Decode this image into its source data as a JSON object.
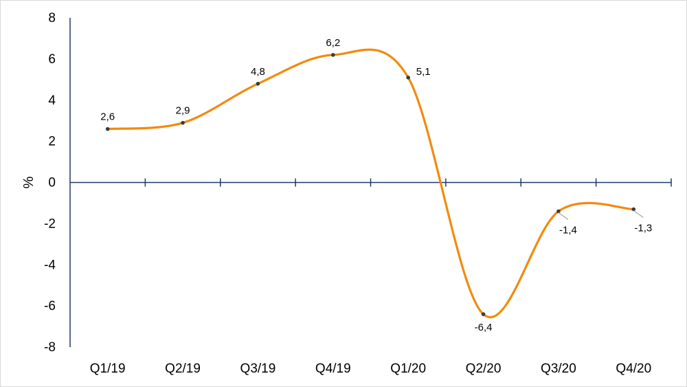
{
  "chart_data": {
    "type": "line",
    "title": "",
    "xlabel": "",
    "ylabel": "%",
    "categories": [
      "Q1/19",
      "Q2/19",
      "Q3/19",
      "Q4/19",
      "Q1/20",
      "Q2/20",
      "Q3/20",
      "Q4/20"
    ],
    "values": [
      2.6,
      2.9,
      4.8,
      6.2,
      5.1,
      -6.4,
      -1.4,
      -1.3
    ],
    "data_labels": [
      "2,6",
      "2,9",
      "4,8",
      "6,2",
      "5,1",
      "-6,4",
      "-1,4",
      "-1,3"
    ],
    "yticks": [
      8,
      6,
      4,
      2,
      0,
      -2,
      -4,
      -6,
      -8
    ],
    "ylim": [
      -8,
      8
    ],
    "smooth": true,
    "grid": false,
    "legend": "none",
    "colors": {
      "line": "#F28A0C",
      "axis": "#1F3864",
      "marker": "#3a3a3a",
      "leader": "#a6a6a6"
    }
  }
}
